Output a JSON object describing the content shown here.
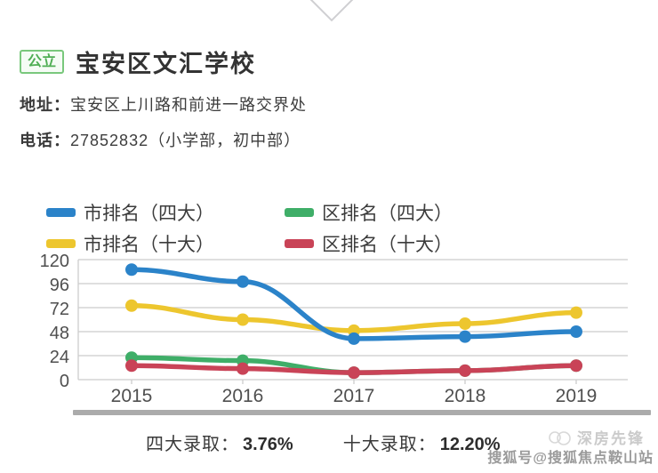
{
  "header": {
    "tag": "公立",
    "title": "宝安区文汇学校",
    "address_label": "地址：",
    "address": "宝安区上川路和前进一路交界处",
    "phone_label": "电话：",
    "phone": "27852832（小学部，初中部）"
  },
  "legend": [
    {
      "label": "市排名（四大）",
      "color": "#2B83C9"
    },
    {
      "label": "区排名（四大）",
      "color": "#3FAE68"
    },
    {
      "label": "市排名（十大）",
      "color": "#EDC62E"
    },
    {
      "label": "区排名（十大）",
      "color": "#C94357"
    }
  ],
  "chart_data": {
    "type": "line",
    "x": [
      2015,
      2016,
      2017,
      2018,
      2019
    ],
    "series": [
      {
        "name": "市排名（四大）",
        "color": "#2B83C9",
        "values": [
          110,
          98,
          41,
          43,
          48
        ]
      },
      {
        "name": "市排名（十大）",
        "color": "#EDC62E",
        "values": [
          74,
          60,
          49,
          56,
          67
        ]
      },
      {
        "name": "区排名（四大）",
        "color": "#3FAE68",
        "values": [
          22,
          19,
          7,
          9,
          14
        ]
      },
      {
        "name": "区排名（十大）",
        "color": "#C94357",
        "values": [
          14,
          11,
          7,
          9,
          14
        ]
      }
    ],
    "ylim": [
      0,
      120
    ],
    "yticks": [
      0,
      24,
      48,
      72,
      96,
      120
    ],
    "grid": true,
    "legend_position": "top",
    "axis_color": "#cccccc",
    "tick_label_color": "#4f4f4f"
  },
  "stats": {
    "item1_label": "四大录取：",
    "item1_value": "3.76%",
    "item2_label": "十大录取：",
    "item2_value": "12.20%"
  },
  "watermark": {
    "brand": "深房先锋",
    "account": "搜狐号@搜狐焦点鞍山站"
  }
}
